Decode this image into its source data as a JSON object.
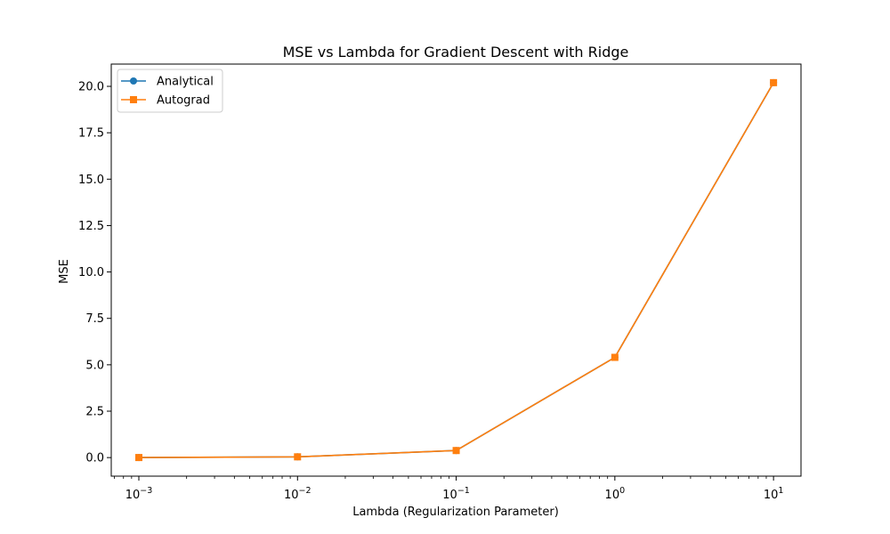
{
  "chart_data": {
    "type": "line",
    "title": "MSE vs Lambda for Gradient Descent with Ridge",
    "xlabel": "Lambda (Regularization Parameter)",
    "ylabel": "MSE",
    "xscale": "log",
    "x": [
      0.001,
      0.01,
      0.1,
      1,
      10
    ],
    "x_tick_values": [
      0.001,
      0.01,
      0.1,
      1,
      10
    ],
    "x_tick_labels": [
      {
        "base": "10",
        "exp": "−3"
      },
      {
        "base": "10",
        "exp": "−2"
      },
      {
        "base": "10",
        "exp": "−1"
      },
      {
        "base": "10",
        "exp": "0"
      },
      {
        "base": "10",
        "exp": "1"
      }
    ],
    "y_ticks": [
      0.0,
      2.5,
      5.0,
      7.5,
      10.0,
      12.5,
      15.0,
      17.5,
      20.0
    ],
    "y_tick_labels": [
      "0.0",
      "2.5",
      "5.0",
      "7.5",
      "10.0",
      "12.5",
      "15.0",
      "17.5",
      "20.0"
    ],
    "xlim": [
      0.00067,
      14.9
    ],
    "ylim": [
      -1.0,
      21.2
    ],
    "grid": false,
    "legend_position": "top-left",
    "series": [
      {
        "name": "Analytical",
        "marker": "circle",
        "color": "#1f77b4",
        "values": [
          0.003,
          0.04,
          0.38,
          5.4,
          20.2
        ]
      },
      {
        "name": "Autograd",
        "marker": "square",
        "color": "#ff7f0e",
        "values": [
          0.003,
          0.04,
          0.38,
          5.4,
          20.2
        ]
      }
    ]
  }
}
